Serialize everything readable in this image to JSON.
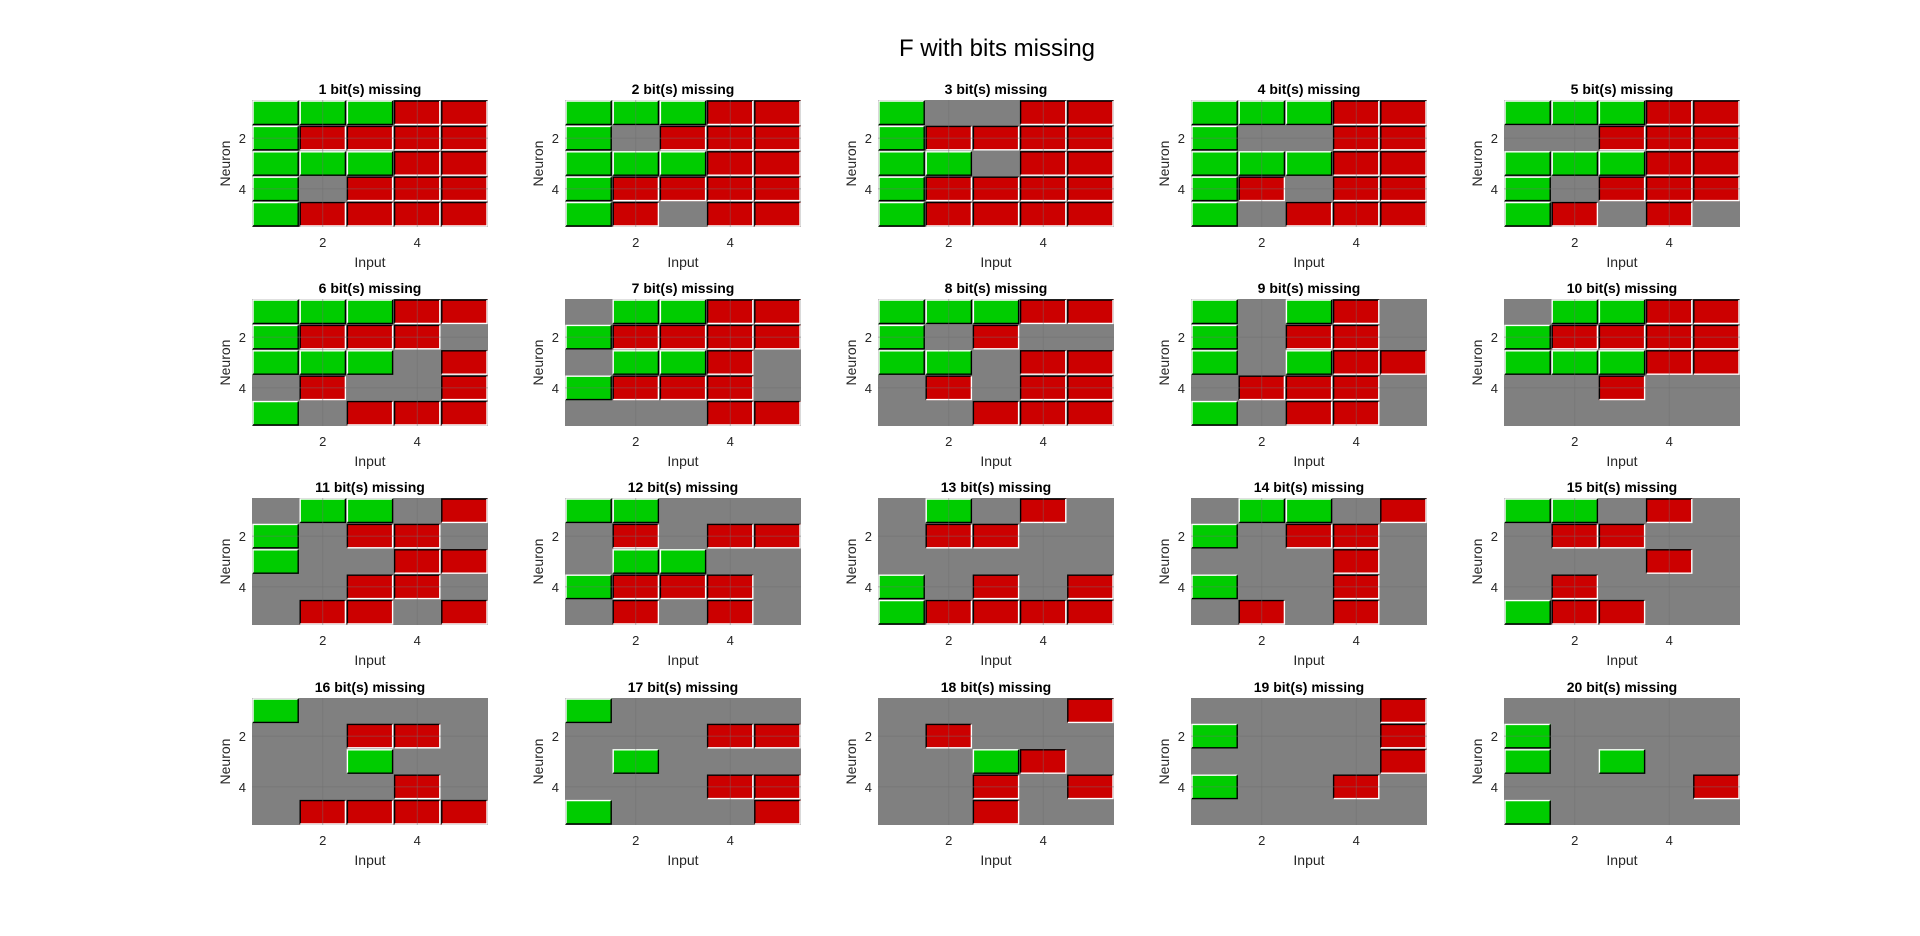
{
  "figure": {
    "title": "F with bits missing"
  },
  "colors": {
    "on": "#00cc00",
    "off": "#cc0000",
    "missing": "#808080",
    "grid": "#6e6e6e"
  },
  "legend_map": {
    "1": "on",
    "-1": "off",
    "0": "missing"
  },
  "chart_data": [
    {
      "type": "heatmap",
      "title": "1 bit(s) missing",
      "xlabel": "Input",
      "ylabel": "Neuron",
      "xticks": [
        2,
        4
      ],
      "yticks": [
        2,
        4
      ],
      "grid": [
        [
          1,
          1,
          1,
          -1,
          -1
        ],
        [
          1,
          -1,
          -1,
          -1,
          -1
        ],
        [
          1,
          1,
          1,
          -1,
          -1
        ],
        [
          1,
          0,
          -1,
          -1,
          -1
        ],
        [
          1,
          -1,
          -1,
          -1,
          -1
        ]
      ]
    },
    {
      "type": "heatmap",
      "title": "2 bit(s) missing",
      "xlabel": "Input",
      "ylabel": "Neuron",
      "xticks": [
        2,
        4
      ],
      "yticks": [
        2,
        4
      ],
      "grid": [
        [
          1,
          1,
          1,
          -1,
          -1
        ],
        [
          1,
          0,
          -1,
          -1,
          -1
        ],
        [
          1,
          1,
          1,
          -1,
          -1
        ],
        [
          1,
          -1,
          -1,
          -1,
          -1
        ],
        [
          1,
          -1,
          0,
          -1,
          -1
        ]
      ]
    },
    {
      "type": "heatmap",
      "title": "3 bit(s) missing",
      "xlabel": "Input",
      "ylabel": "Neuron",
      "xticks": [
        2,
        4
      ],
      "yticks": [
        2,
        4
      ],
      "grid": [
        [
          1,
          0,
          0,
          -1,
          -1
        ],
        [
          1,
          -1,
          -1,
          -1,
          -1
        ],
        [
          1,
          1,
          0,
          -1,
          -1
        ],
        [
          1,
          -1,
          -1,
          -1,
          -1
        ],
        [
          1,
          -1,
          -1,
          -1,
          -1
        ]
      ]
    },
    {
      "type": "heatmap",
      "title": "4 bit(s) missing",
      "xlabel": "Input",
      "ylabel": "Neuron",
      "xticks": [
        2,
        4
      ],
      "yticks": [
        2,
        4
      ],
      "grid": [
        [
          1,
          1,
          1,
          -1,
          -1
        ],
        [
          1,
          0,
          0,
          -1,
          -1
        ],
        [
          1,
          1,
          1,
          -1,
          -1
        ],
        [
          1,
          -1,
          0,
          -1,
          -1
        ],
        [
          1,
          0,
          -1,
          -1,
          -1
        ]
      ]
    },
    {
      "type": "heatmap",
      "title": "5 bit(s) missing",
      "xlabel": "Input",
      "ylabel": "Neuron",
      "xticks": [
        2,
        4
      ],
      "yticks": [
        2,
        4
      ],
      "grid": [
        [
          1,
          1,
          1,
          -1,
          -1
        ],
        [
          0,
          0,
          -1,
          -1,
          -1
        ],
        [
          1,
          1,
          1,
          -1,
          -1
        ],
        [
          1,
          0,
          -1,
          -1,
          -1
        ],
        [
          1,
          -1,
          0,
          -1,
          0
        ]
      ]
    },
    {
      "type": "heatmap",
      "title": "6 bit(s) missing",
      "xlabel": "Input",
      "ylabel": "Neuron",
      "xticks": [
        2,
        4
      ],
      "yticks": [
        2,
        4
      ],
      "grid": [
        [
          1,
          1,
          1,
          -1,
          -1
        ],
        [
          1,
          -1,
          -1,
          -1,
          0
        ],
        [
          1,
          1,
          1,
          0,
          -1
        ],
        [
          0,
          -1,
          0,
          0,
          -1
        ],
        [
          1,
          0,
          -1,
          -1,
          -1
        ]
      ]
    },
    {
      "type": "heatmap",
      "title": "7 bit(s) missing",
      "xlabel": "Input",
      "ylabel": "Neuron",
      "xticks": [
        2,
        4
      ],
      "yticks": [
        2,
        4
      ],
      "grid": [
        [
          0,
          1,
          1,
          -1,
          -1
        ],
        [
          1,
          -1,
          -1,
          -1,
          -1
        ],
        [
          0,
          1,
          1,
          -1,
          0
        ],
        [
          1,
          -1,
          -1,
          -1,
          0
        ],
        [
          0,
          0,
          0,
          -1,
          -1
        ]
      ]
    },
    {
      "type": "heatmap",
      "title": "8 bit(s) missing",
      "xlabel": "Input",
      "ylabel": "Neuron",
      "xticks": [
        2,
        4
      ],
      "yticks": [
        2,
        4
      ],
      "grid": [
        [
          1,
          1,
          1,
          -1,
          -1
        ],
        [
          1,
          0,
          -1,
          0,
          0
        ],
        [
          1,
          1,
          0,
          -1,
          -1
        ],
        [
          0,
          -1,
          0,
          -1,
          -1
        ],
        [
          0,
          0,
          -1,
          -1,
          -1
        ]
      ]
    },
    {
      "type": "heatmap",
      "title": "9 bit(s) missing",
      "xlabel": "Input",
      "ylabel": "Neuron",
      "xticks": [
        2,
        4
      ],
      "yticks": [
        2,
        4
      ],
      "grid": [
        [
          1,
          0,
          1,
          -1,
          0
        ],
        [
          1,
          0,
          -1,
          -1,
          0
        ],
        [
          1,
          0,
          1,
          -1,
          -1
        ],
        [
          0,
          -1,
          -1,
          -1,
          0
        ],
        [
          1,
          0,
          -1,
          -1,
          0
        ]
      ]
    },
    {
      "type": "heatmap",
      "title": "10 bit(s) missing",
      "xlabel": "Input",
      "ylabel": "Neuron",
      "xticks": [
        2,
        4
      ],
      "yticks": [
        2,
        4
      ],
      "grid": [
        [
          0,
          1,
          1,
          -1,
          -1
        ],
        [
          1,
          -1,
          -1,
          -1,
          -1
        ],
        [
          1,
          1,
          1,
          -1,
          -1
        ],
        [
          0,
          0,
          -1,
          0,
          0
        ],
        [
          0,
          0,
          0,
          0,
          0
        ]
      ]
    },
    {
      "type": "heatmap",
      "title": "11 bit(s) missing",
      "xlabel": "Input",
      "ylabel": "Neuron",
      "xticks": [
        2,
        4
      ],
      "yticks": [
        2,
        4
      ],
      "grid": [
        [
          0,
          1,
          1,
          0,
          -1
        ],
        [
          1,
          0,
          -1,
          -1,
          0
        ],
        [
          1,
          0,
          0,
          -1,
          -1
        ],
        [
          0,
          0,
          -1,
          -1,
          0
        ],
        [
          0,
          -1,
          -1,
          0,
          -1
        ]
      ]
    },
    {
      "type": "heatmap",
      "title": "12 bit(s) missing",
      "xlabel": "Input",
      "ylabel": "Neuron",
      "xticks": [
        2,
        4
      ],
      "yticks": [
        2,
        4
      ],
      "grid": [
        [
          1,
          1,
          0,
          0,
          0
        ],
        [
          0,
          -1,
          0,
          -1,
          -1
        ],
        [
          0,
          1,
          1,
          0,
          0
        ],
        [
          1,
          -1,
          -1,
          -1,
          0
        ],
        [
          0,
          -1,
          0,
          -1,
          0
        ]
      ]
    },
    {
      "type": "heatmap",
      "title": "13 bit(s) missing",
      "xlabel": "Input",
      "ylabel": "Neuron",
      "xticks": [
        2,
        4
      ],
      "yticks": [
        2,
        4
      ],
      "grid": [
        [
          0,
          1,
          0,
          -1,
          0
        ],
        [
          0,
          -1,
          -1,
          0,
          0
        ],
        [
          0,
          0,
          0,
          0,
          0
        ],
        [
          1,
          0,
          -1,
          0,
          -1
        ],
        [
          1,
          -1,
          -1,
          -1,
          -1
        ]
      ]
    },
    {
      "type": "heatmap",
      "title": "14 bit(s) missing",
      "xlabel": "Input",
      "ylabel": "Neuron",
      "xticks": [
        2,
        4
      ],
      "yticks": [
        2,
        4
      ],
      "grid": [
        [
          0,
          1,
          1,
          0,
          -1
        ],
        [
          1,
          0,
          -1,
          -1,
          0
        ],
        [
          0,
          0,
          0,
          -1,
          0
        ],
        [
          1,
          0,
          0,
          -1,
          0
        ],
        [
          0,
          -1,
          0,
          -1,
          0
        ]
      ]
    },
    {
      "type": "heatmap",
      "title": "15 bit(s) missing",
      "xlabel": "Input",
      "ylabel": "Neuron",
      "xticks": [
        2,
        4
      ],
      "yticks": [
        2,
        4
      ],
      "grid": [
        [
          1,
          1,
          0,
          -1,
          0
        ],
        [
          0,
          -1,
          -1,
          0,
          0
        ],
        [
          0,
          0,
          0,
          -1,
          0
        ],
        [
          0,
          -1,
          0,
          0,
          0
        ],
        [
          1,
          -1,
          -1,
          0,
          0
        ]
      ]
    },
    {
      "type": "heatmap",
      "title": "16 bit(s) missing",
      "xlabel": "Input",
      "ylabel": "Neuron",
      "xticks": [
        2,
        4
      ],
      "yticks": [
        2,
        4
      ],
      "grid": [
        [
          1,
          0,
          0,
          0,
          0
        ],
        [
          0,
          0,
          -1,
          -1,
          0
        ],
        [
          0,
          0,
          1,
          0,
          0
        ],
        [
          0,
          0,
          0,
          -1,
          0
        ],
        [
          0,
          -1,
          -1,
          -1,
          -1
        ]
      ]
    },
    {
      "type": "heatmap",
      "title": "17 bit(s) missing",
      "xlabel": "Input",
      "ylabel": "Neuron",
      "xticks": [
        2,
        4
      ],
      "yticks": [
        2,
        4
      ],
      "grid": [
        [
          1,
          0,
          0,
          0,
          0
        ],
        [
          0,
          0,
          0,
          -1,
          -1
        ],
        [
          0,
          1,
          0,
          0,
          0
        ],
        [
          0,
          0,
          0,
          -1,
          -1
        ],
        [
          1,
          0,
          0,
          0,
          -1
        ]
      ]
    },
    {
      "type": "heatmap",
      "title": "18 bit(s) missing",
      "xlabel": "Input",
      "ylabel": "Neuron",
      "xticks": [
        2,
        4
      ],
      "yticks": [
        2,
        4
      ],
      "grid": [
        [
          0,
          0,
          0,
          0,
          -1
        ],
        [
          0,
          -1,
          0,
          0,
          0
        ],
        [
          0,
          0,
          1,
          -1,
          0
        ],
        [
          0,
          0,
          -1,
          0,
          -1
        ],
        [
          0,
          0,
          -1,
          0,
          0
        ]
      ]
    },
    {
      "type": "heatmap",
      "title": "19 bit(s) missing",
      "xlabel": "Input",
      "ylabel": "Neuron",
      "xticks": [
        2,
        4
      ],
      "yticks": [
        2,
        4
      ],
      "grid": [
        [
          0,
          0,
          0,
          0,
          -1
        ],
        [
          1,
          0,
          0,
          0,
          -1
        ],
        [
          0,
          0,
          0,
          0,
          -1
        ],
        [
          1,
          0,
          0,
          -1,
          0
        ],
        [
          0,
          0,
          0,
          0,
          0
        ]
      ]
    },
    {
      "type": "heatmap",
      "title": "20 bit(s) missing",
      "xlabel": "Input",
      "ylabel": "Neuron",
      "xticks": [
        2,
        4
      ],
      "yticks": [
        2,
        4
      ],
      "grid": [
        [
          0,
          0,
          0,
          0,
          0
        ],
        [
          1,
          0,
          0,
          0,
          0
        ],
        [
          1,
          0,
          1,
          0,
          0
        ],
        [
          0,
          0,
          0,
          0,
          -1
        ],
        [
          1,
          0,
          0,
          0,
          0
        ]
      ]
    }
  ]
}
